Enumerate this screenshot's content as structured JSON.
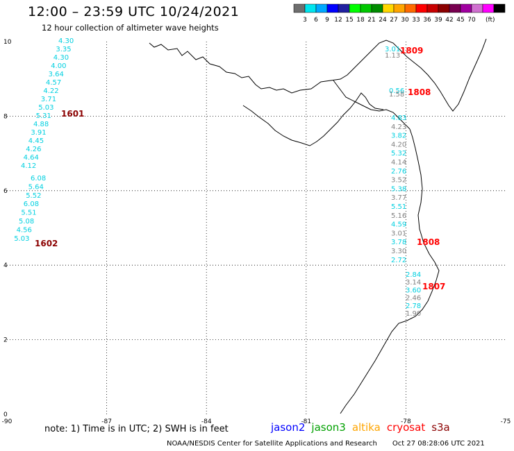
{
  "header": {
    "title": "12:00 – 23:59 UTC 10/24/2021",
    "subtitle": "12 hour collection of altimeter wave heights"
  },
  "colorbar": {
    "unit": "(ft)",
    "colors": [
      "#6e6e6e",
      "#00e5ee",
      "#00a8ff",
      "#0000ff",
      "#2020a0",
      "#00ff00",
      "#00c800",
      "#008c00",
      "#ffd700",
      "#ffa500",
      "#ff6a00",
      "#ff0000",
      "#c80000",
      "#8b0000",
      "#780050",
      "#a000a0",
      "#d070d0",
      "#ff00ff",
      "#000000"
    ],
    "labels": [
      "3",
      "6",
      "9",
      "12",
      "15",
      "18",
      "21",
      "24",
      "27",
      "30",
      "33",
      "36",
      "39",
      "42",
      "45",
      "70"
    ]
  },
  "map": {
    "lon_range": [
      -90,
      -75
    ],
    "lat_range": [
      0,
      10
    ],
    "lon_ticks": [
      "-90",
      "-87",
      "-84",
      "-81",
      "-78",
      "-75"
    ],
    "lat_ticks": [
      "0",
      "2",
      "4",
      "6",
      "8",
      "10"
    ],
    "grid_lines": true
  },
  "tracks": [
    {
      "time": "1601",
      "color": "#8b0000",
      "lon": -88.3,
      "lat": 8.0,
      "values": [
        "4.30",
        "3.35",
        "4.30",
        "4.00",
        "3.64",
        "4.57",
        "4.22",
        "3.71",
        "5.03",
        "5.31",
        "4.88",
        "3.91",
        "4.45",
        "4.26",
        "4.64",
        "4.12"
      ]
    },
    {
      "time": "1602",
      "color": "#8b0000",
      "lon": -88.4,
      "lat": 4.6,
      "values": [
        "6.08",
        "5.64",
        "5.52",
        "6.08",
        "5.51",
        "5.08",
        "4.56",
        "5.03"
      ]
    },
    {
      "time": "1809",
      "color": "#ff0000",
      "lon": -77.3,
      "lat": 9.7,
      "values": [
        "3.01",
        "1.13"
      ]
    },
    {
      "time": "1808",
      "color": "#ff0000",
      "lon": -77.3,
      "lat": 8.5,
      "values": [
        "0.56",
        "1.58"
      ]
    },
    {
      "time": "1808",
      "color": "#ff0000",
      "lon": -77.3,
      "lat": 4.6,
      "values": [
        "4.83",
        "4.23",
        "3.82",
        "4.20",
        "5.32",
        "4.14",
        "2.76",
        "3.52",
        "5.38",
        "3.77",
        "5.51",
        "5.16",
        "4.59",
        "3.01",
        "3.78",
        "3.30",
        "2.72"
      ]
    },
    {
      "time": "1807",
      "color": "#ff0000",
      "lon": -77.3,
      "lat": 3.0,
      "values": [
        "2.84",
        "3.14",
        "3.60",
        "2.46",
        "2.78",
        "1.90"
      ]
    }
  ],
  "footer": {
    "note": "note: 1) Time is in UTC; 2) SWH is in feet",
    "satellites": [
      {
        "name": "jason2",
        "color": "#0000ff"
      },
      {
        "name": "jason3",
        "color": "#00a000"
      },
      {
        "name": "altika",
        "color": "#ffa500"
      },
      {
        "name": "cryosat",
        "color": "#ff0000"
      },
      {
        "name": "s3a",
        "color": "#8b0000"
      }
    ],
    "credit_left": "NOAA/NESDIS Center for Satellite Applications and Research",
    "credit_right": "Oct 27 08:28:06 UTC 2021"
  }
}
